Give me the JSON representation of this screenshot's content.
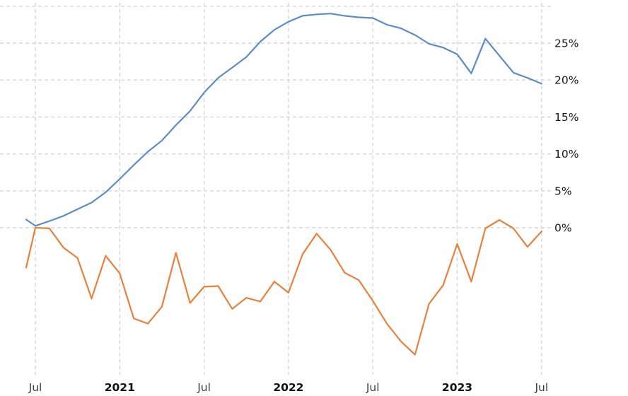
{
  "chart_data": {
    "type": "line",
    "title": "",
    "xlabel": "",
    "ylabel": "",
    "background_color": "#ffffff",
    "grid": {
      "style": "dashed",
      "color": "#d6d6d6",
      "dash": "5 4"
    },
    "months": [
      "Jun 2020",
      "Jul 2020",
      "Aug 2020",
      "Sep 2020",
      "Oct 2020",
      "Nov 2020",
      "Dec 2020",
      "Jan 2021",
      "Feb 2021",
      "Mar 2021",
      "Apr 2021",
      "May 2021",
      "Jun 2021",
      "Jul 2021",
      "Aug 2021",
      "Sep 2021",
      "Oct 2021",
      "Nov 2021",
      "Dec 2021",
      "Jan 2022",
      "Feb 2022",
      "Mar 2022",
      "Apr 2022",
      "May 2022",
      "Jun 2022",
      "Jul 2022",
      "Aug 2022",
      "Sep 2022",
      "Oct 2022",
      "Nov 2022",
      "Dec 2022",
      "Jan 2023",
      "Feb 2023",
      "Mar 2023",
      "Apr 2023",
      "May 2023",
      "Jun 2023",
      "Jul 2023"
    ],
    "series": [
      {
        "name": "blue-series",
        "color": "#5b8dc5",
        "unit": "percent",
        "values": [
          1.1,
          0.25,
          0.9,
          1.6,
          2.5,
          3.4,
          4.8,
          6.6,
          8.5,
          10.3,
          11.8,
          13.9,
          15.8,
          18.3,
          20.3,
          21.7,
          23.1,
          25.2,
          26.8,
          27.9,
          28.7,
          28.9,
          29.0,
          28.7,
          28.5,
          28.4,
          27.5,
          27.0,
          26.1,
          24.9,
          24.4,
          23.5,
          20.9,
          25.6,
          23.3,
          21.0,
          20.3,
          19.5
        ]
      },
      {
        "name": "orange-series",
        "color": "#e8813a",
        "unit": "percent",
        "values": [
          -5.4,
          0.0,
          -0.1,
          -2.7,
          -4.1,
          -9.6,
          -3.8,
          -6.2,
          -12.3,
          -13.0,
          -10.7,
          -3.4,
          -10.2,
          -8.0,
          -7.9,
          -11.0,
          -9.5,
          -10.0,
          -7.3,
          -8.8,
          -3.6,
          -0.8,
          -3.0,
          -6.1,
          -7.1,
          -9.9,
          -13.0,
          -15.4,
          -17.2,
          -10.3,
          -7.8,
          -2.2,
          -7.3,
          -0.1,
          1.05,
          -0.1,
          -2.6,
          -0.5
        ]
      }
    ],
    "y_axis": {
      "side": "right",
      "tick_values": [
        0,
        5,
        10,
        15,
        20,
        25
      ],
      "tick_labels": [
        "0%",
        "5%",
        "10%",
        "15%",
        "20%",
        "25%"
      ],
      "gridline_values": [
        0,
        5,
        10,
        15,
        20,
        25,
        30
      ],
      "ylim": [
        -20.5,
        30.8
      ],
      "label_color": "#1a1a1a"
    },
    "x_axis": {
      "ticks": [
        {
          "label": "Jul",
          "month_index": 1,
          "bold": false
        },
        {
          "label": "2021",
          "month_index": 7,
          "bold": true
        },
        {
          "label": "Jul",
          "month_index": 13,
          "bold": false
        },
        {
          "label": "2022",
          "month_index": 19,
          "bold": true
        },
        {
          "label": "Jul",
          "month_index": 25,
          "bold": false
        },
        {
          "label": "2023",
          "month_index": 31,
          "bold": true
        },
        {
          "label": "Jul",
          "month_index": 37,
          "bold": false
        }
      ],
      "month_label_color": "#3c3c3c",
      "year_label_color": "#111111"
    }
  }
}
